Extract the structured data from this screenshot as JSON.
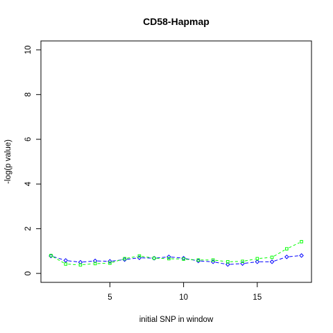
{
  "chart_data": {
    "type": "line",
    "title": "CD58-Hapmap",
    "xlabel": "initial SNP in window",
    "ylabel": "-log(p value)",
    "xlim": [
      0.32,
      18.68
    ],
    "ylim": [
      -0.4,
      10.4
    ],
    "x_ticks": [
      5,
      10,
      15
    ],
    "y_ticks": [
      0,
      2,
      4,
      6,
      8,
      10
    ],
    "grid": false,
    "legend": "none",
    "x": [
      1,
      2,
      3,
      4,
      5,
      6,
      7,
      8,
      9,
      10,
      11,
      12,
      13,
      14,
      15,
      16,
      17,
      18
    ],
    "series": [
      {
        "color": "#0000ff",
        "marker": "diamond",
        "values": [
          0.78,
          0.58,
          0.5,
          0.56,
          0.54,
          0.62,
          0.7,
          0.68,
          0.74,
          0.68,
          0.56,
          0.52,
          0.4,
          0.44,
          0.52,
          0.52,
          0.74,
          0.8
        ]
      },
      {
        "color": "#00ff00",
        "marker": "square",
        "values": [
          0.8,
          0.42,
          0.38,
          0.44,
          0.46,
          0.66,
          0.78,
          0.68,
          0.66,
          0.64,
          0.6,
          0.6,
          0.52,
          0.54,
          0.66,
          0.72,
          1.1,
          1.42
        ]
      }
    ]
  }
}
